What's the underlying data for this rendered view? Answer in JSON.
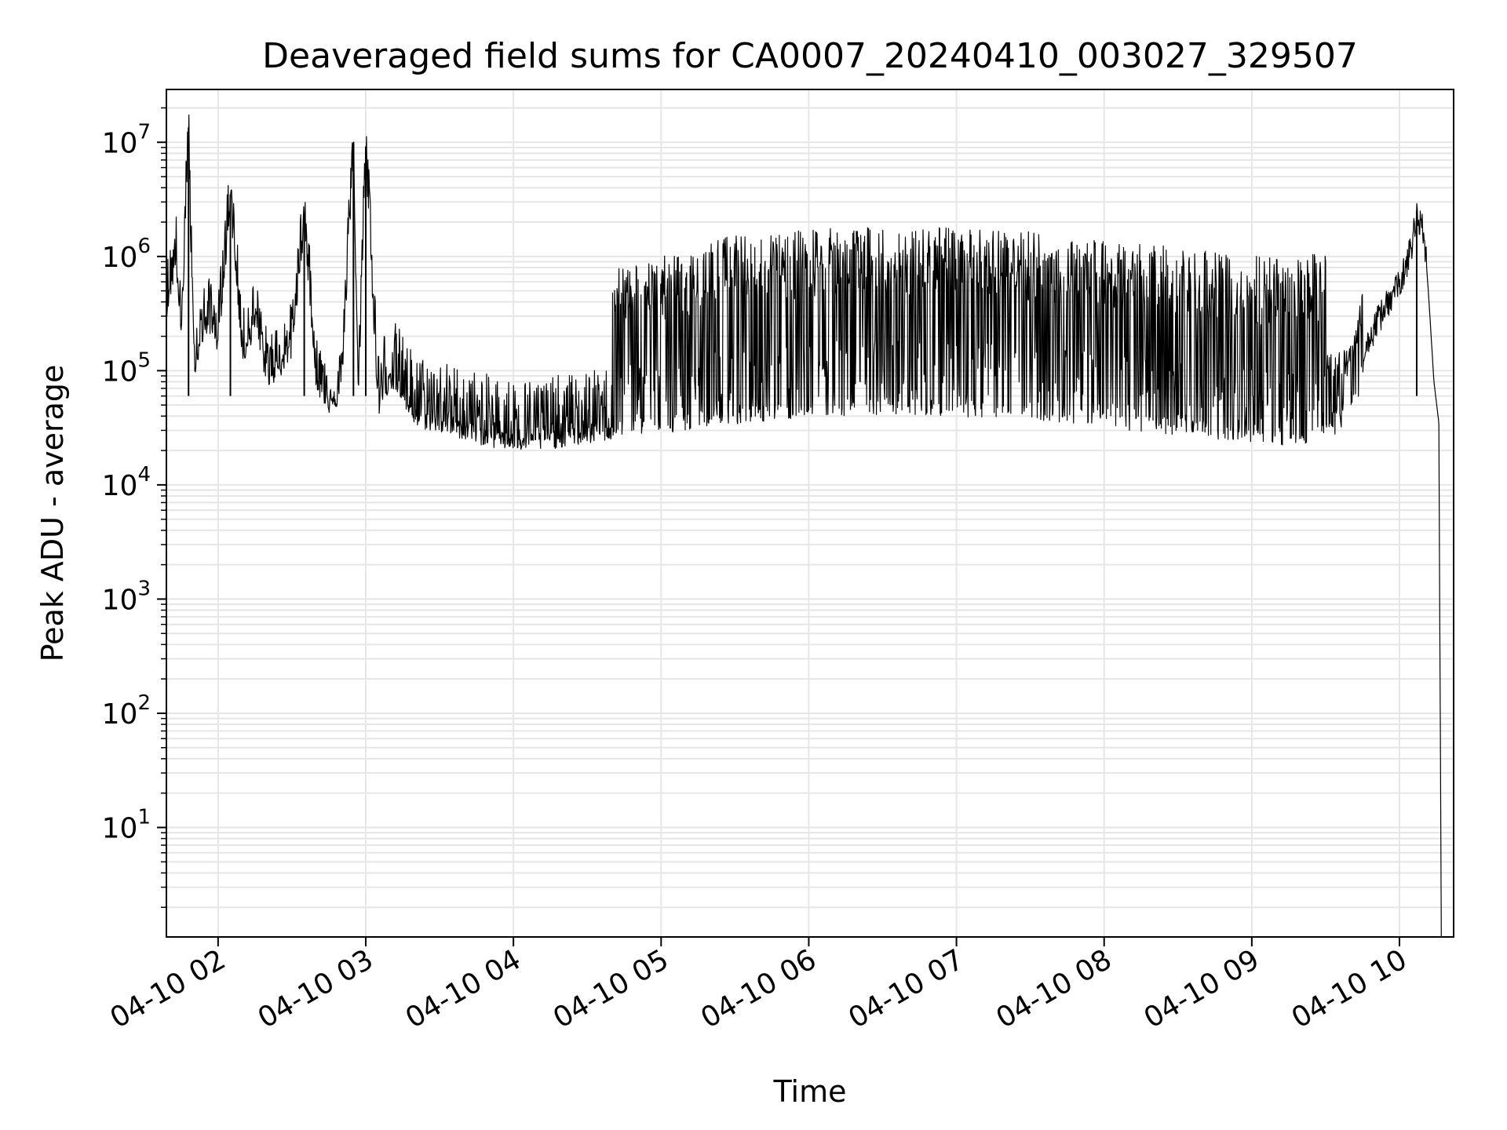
{
  "chart_data": {
    "type": "line",
    "title": "Deaveraged field sums for CA0007_20240410_003027_329507",
    "xlabel": "Time",
    "ylabel": "Peak ADU - average",
    "x_axis": {
      "range": [
        "2024-04-10T01:39",
        "2024-04-10T10:22"
      ],
      "ticks": [
        "2024-04-10T02:00",
        "2024-04-10T03:00",
        "2024-04-10T04:00",
        "2024-04-10T05:00",
        "2024-04-10T06:00",
        "2024-04-10T07:00",
        "2024-04-10T08:00",
        "2024-04-10T09:00",
        "2024-04-10T10:00"
      ],
      "tick_labels": [
        "04-10 02",
        "04-10 03",
        "04-10 04",
        "04-10 05",
        "04-10 06",
        "04-10 07",
        "04-10 08",
        "04-10 09",
        "04-10 10"
      ]
    },
    "y_axis": {
      "scale": "log",
      "range": [
        1.1,
        29000000
      ],
      "ticks": [
        10,
        100,
        1000,
        10000,
        100000,
        1000000,
        10000000
      ],
      "tick_labels": [
        {
          "base": "10",
          "exp": "1"
        },
        {
          "base": "10",
          "exp": "2"
        },
        {
          "base": "10",
          "exp": "3"
        },
        {
          "base": "10",
          "exp": "4"
        },
        {
          "base": "10",
          "exp": "5"
        },
        {
          "base": "10",
          "exp": "6"
        },
        {
          "base": "10",
          "exp": "7"
        }
      ]
    },
    "grid": true,
    "grid_minor": true,
    "line_color": "#000000",
    "grid_color": "#e6e6e6",
    "series": [
      {
        "x": [
          "01:39",
          "01:43",
          "01:45",
          "01:48",
          "01:50",
          "01:54",
          "01:57",
          "02:00",
          "02:05",
          "02:10",
          "02:15",
          "02:20",
          "02:25",
          "02:30",
          "02:35",
          "02:40",
          "02:45",
          "02:50",
          "02:55",
          "02:57",
          "03:00",
          "03:05",
          "03:10",
          "03:15",
          "03:20",
          "03:30",
          "03:40",
          "03:50",
          "04:00",
          "04:10",
          "04:20",
          "04:30",
          "04:40",
          "04:50",
          "05:00",
          "05:10",
          "05:20",
          "05:30",
          "05:40",
          "05:50",
          "06:00",
          "06:10",
          "06:20",
          "06:30",
          "06:40",
          "06:50",
          "07:00",
          "07:10",
          "07:20",
          "07:30",
          "07:40",
          "07:50",
          "08:00",
          "08:10",
          "08:20",
          "08:30",
          "08:40",
          "08:50",
          "09:00",
          "09:10",
          "09:20",
          "09:30",
          "09:40",
          "09:45",
          "09:50",
          "09:55",
          "10:00",
          "10:03",
          "10:05",
          "10:07",
          "10:10",
          "10:12",
          "10:14",
          "10:16",
          "10:17"
        ],
        "y": [
          400000,
          1100000,
          200000,
          13500000,
          120000,
          250000,
          300000,
          200000,
          3500000,
          150000,
          300000,
          100000,
          120000,
          180000,
          2300000,
          90000,
          60000,
          70000,
          10000000,
          60000,
          9200000,
          55000,
          100000,
          70000,
          45000,
          40000,
          35000,
          30000,
          28000,
          28000,
          30000,
          32000,
          35000,
          38000,
          40000,
          42000,
          45000,
          48000,
          50000,
          52000,
          55000,
          56000,
          57000,
          58000,
          58000,
          57000,
          56000,
          55000,
          54000,
          52000,
          50000,
          48000,
          46000,
          42000,
          40000,
          38000,
          36000,
          34000,
          32000,
          31000,
          32000,
          35000,
          40000,
          120000,
          250000,
          400000,
          600000,
          900000,
          1300000,
          2500000,
          1700000,
          400000,
          80000,
          35000,
          1.1
        ]
      }
    ]
  }
}
